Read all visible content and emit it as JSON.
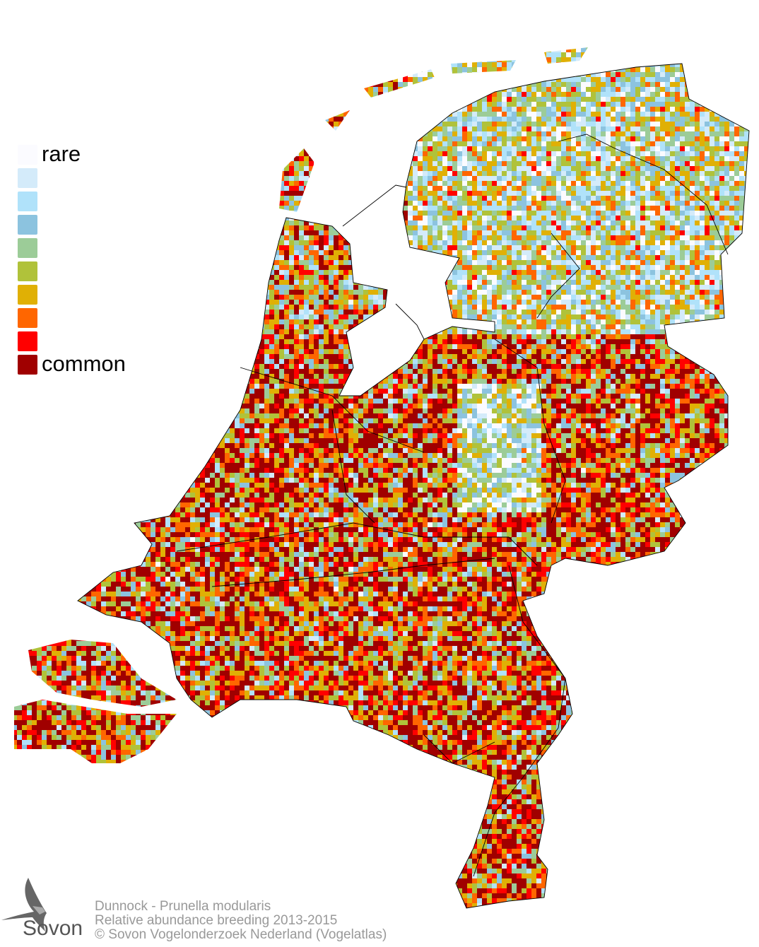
{
  "legend": {
    "label_low": "rare",
    "label_high": "common",
    "colors": [
      "#fbfbff",
      "#d4ebfa",
      "#b0e2fa",
      "#8cc3df",
      "#9ccc98",
      "#b0c23a",
      "#e0b005",
      "#ff6600",
      "#ff0000",
      "#a00000"
    ]
  },
  "credits": {
    "species": "Dunnock - Prunella modularis",
    "subtitle": "Relative abundance breeding 2013-2015",
    "copyright": "© Sovon Vogelonderzoek Nederland (Vogelatlas)"
  },
  "logo": {
    "text": "Sovon",
    "icon": "swallow-icon"
  }
}
